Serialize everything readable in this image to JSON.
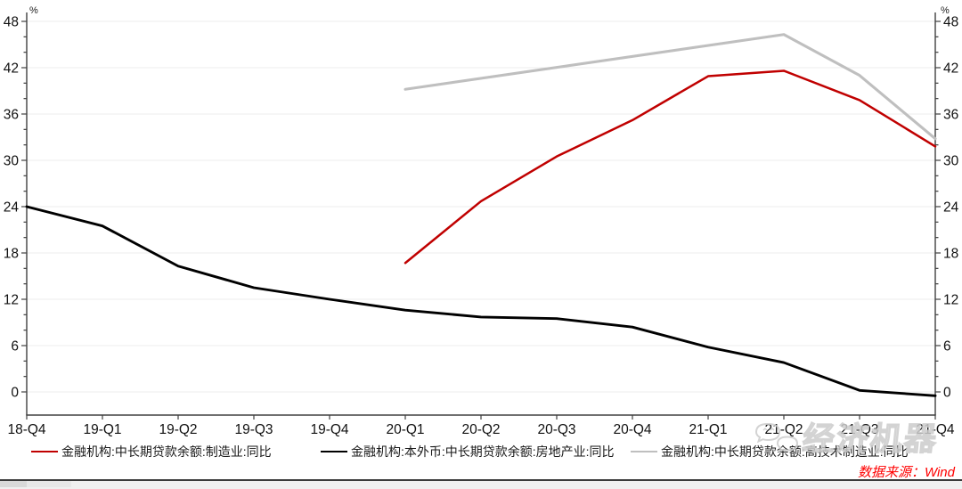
{
  "chart": {
    "y_axis": {
      "unit": "%",
      "min": 0,
      "max": 48,
      "major_step": 6,
      "minor_step": 2,
      "labels": [
        "48",
        "42",
        "36",
        "30",
        "24",
        "18",
        "12",
        "6",
        "0"
      ]
    },
    "x_axis": {
      "categories": [
        "18-Q4",
        "19-Q1",
        "19-Q2",
        "19-Q3",
        "19-Q4",
        "20-Q1",
        "20-Q2",
        "20-Q3",
        "20-Q4",
        "21-Q1",
        "21-Q2",
        "21-Q3",
        "21-Q4"
      ]
    },
    "legend": [
      {
        "label": "金融机构:中长期贷款余额:制造业:同比",
        "color": "#c00000"
      },
      {
        "label": "金融机构:本外币:中长期贷款余额:房地产业:同比",
        "color": "#000000"
      },
      {
        "label": "金融机构:中长期贷款余额:高技术制造业:同比",
        "color": "#bfbfbf"
      }
    ],
    "source": "数据来源：Wind",
    "watermark": "经济机器",
    "colors": {
      "axis": "#404040",
      "grid": "#ededed",
      "source_text": "#ff0000",
      "watermark": "#cccccc"
    }
  },
  "chart_data": {
    "type": "line",
    "title": "",
    "xlabel": "",
    "ylabel": "%",
    "ylim": [
      0,
      48
    ],
    "grid": true,
    "legend_position": "bottom",
    "categories": [
      "18-Q4",
      "19-Q1",
      "19-Q2",
      "19-Q3",
      "19-Q4",
      "20-Q1",
      "20-Q2",
      "20-Q3",
      "20-Q4",
      "21-Q1",
      "21-Q2",
      "21-Q3",
      "21-Q4"
    ],
    "series": [
      {
        "name": "金融机构:中长期贷款余额:制造业:同比",
        "color": "#c00000",
        "values": [
          null,
          null,
          null,
          null,
          null,
          16.7,
          24.7,
          30.5,
          35.2,
          40.9,
          41.6,
          37.8,
          31.8
        ]
      },
      {
        "name": "金融机构:本外币:中长期贷款余额:房地产业:同比",
        "color": "#000000",
        "values": [
          24.0,
          21.5,
          16.3,
          13.5,
          12.0,
          10.6,
          9.7,
          9.5,
          8.4,
          5.8,
          3.8,
          0.2,
          -0.5
        ]
      },
      {
        "name": "金融机构:中长期贷款余额:高技术制造业:同比",
        "color": "#bfbfbf",
        "values": [
          null,
          null,
          null,
          null,
          null,
          39.2,
          null,
          null,
          null,
          null,
          46.3,
          41.0,
          32.8
        ]
      }
    ]
  }
}
